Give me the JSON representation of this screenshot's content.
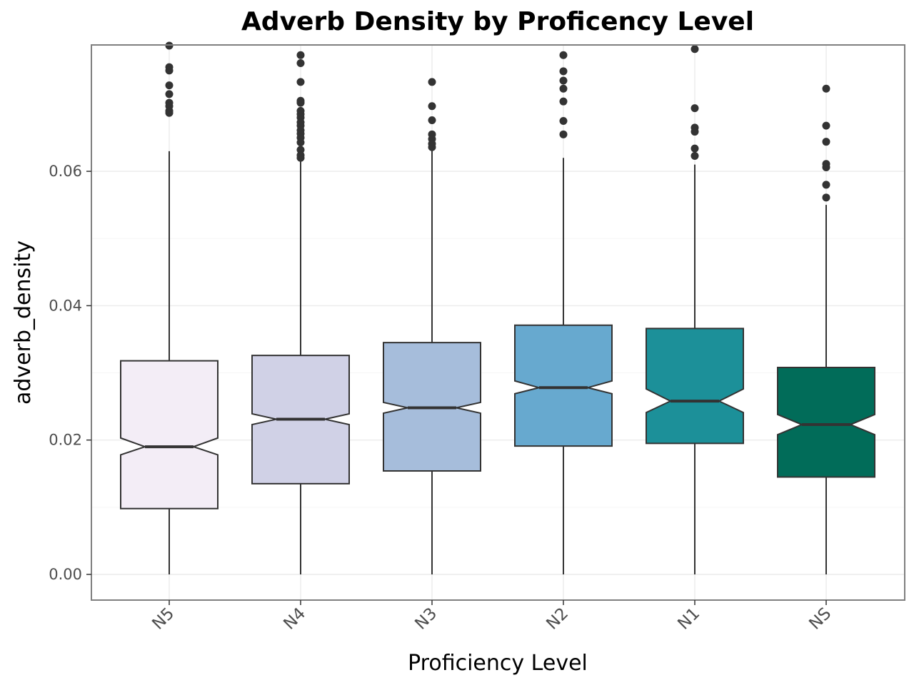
{
  "chart_data": {
    "type": "boxplot",
    "title": "Adverb Density by Proficency Level",
    "xlabel": "Proficiency Level",
    "ylabel": "adverb_density",
    "ylim": [
      -0.0037,
      0.0787
    ],
    "yticks": [
      0.0,
      0.02,
      0.04,
      0.06
    ],
    "ytick_labels": [
      "0.00",
      "0.02",
      "0.04",
      "0.06"
    ],
    "notched": true,
    "grid": true,
    "legend": "none",
    "categories": [
      "N5",
      "N4",
      "N3",
      "N2",
      "N1",
      "NS"
    ],
    "boxes": [
      {
        "category": "N5",
        "color": "#f3edf6",
        "whisker_low": 0.0,
        "q1": 0.0098,
        "median": 0.019,
        "q3": 0.0318,
        "whisker_high": 0.063,
        "notch_low": 0.0178,
        "notch_high": 0.0203,
        "outliers": [
          0.0787,
          0.0755,
          0.075,
          0.0728,
          0.0715,
          0.0702,
          0.0697,
          0.069,
          0.0687
        ]
      },
      {
        "category": "N4",
        "color": "#d0d1e6",
        "whisker_low": 0.0,
        "q1": 0.0135,
        "median": 0.0231,
        "q3": 0.0326,
        "whisker_high": 0.062,
        "notch_low": 0.0223,
        "notch_high": 0.0239,
        "outliers": [
          0.0773,
          0.0761,
          0.0733,
          0.0705,
          0.0702,
          0.069,
          0.0685,
          0.068,
          0.0673,
          0.0668,
          0.0661,
          0.0656,
          0.065,
          0.0643,
          0.0632,
          0.0624,
          0.062
        ]
      },
      {
        "category": "N3",
        "color": "#a6bddb",
        "whisker_low": 0.0,
        "q1": 0.0154,
        "median": 0.0248,
        "q3": 0.0345,
        "whisker_high": 0.0633,
        "notch_low": 0.024,
        "notch_high": 0.0256,
        "outliers": [
          0.0733,
          0.0697,
          0.0676,
          0.0655,
          0.0648,
          0.0641,
          0.0636
        ]
      },
      {
        "category": "N2",
        "color": "#67a9cf",
        "whisker_low": 0.0,
        "q1": 0.0191,
        "median": 0.0278,
        "q3": 0.0371,
        "whisker_high": 0.062,
        "notch_low": 0.0269,
        "notch_high": 0.0288,
        "outliers": [
          0.0773,
          0.0749,
          0.0735,
          0.0723,
          0.0704,
          0.0675,
          0.0655
        ]
      },
      {
        "category": "N1",
        "color": "#1c9099",
        "whisker_low": 0.0,
        "q1": 0.0195,
        "median": 0.0258,
        "q3": 0.0366,
        "whisker_high": 0.061,
        "notch_low": 0.0241,
        "notch_high": 0.0276,
        "outliers": [
          0.0782,
          0.0694,
          0.0665,
          0.0659,
          0.0634,
          0.0623
        ]
      },
      {
        "category": "NS",
        "color": "#016c59",
        "whisker_low": 0.0,
        "q1": 0.0145,
        "median": 0.0223,
        "q3": 0.0308,
        "whisker_high": 0.055,
        "notch_low": 0.0208,
        "notch_high": 0.0238,
        "outliers": [
          0.0723,
          0.0668,
          0.0644,
          0.0611,
          0.0606,
          0.058,
          0.0561
        ]
      }
    ]
  }
}
